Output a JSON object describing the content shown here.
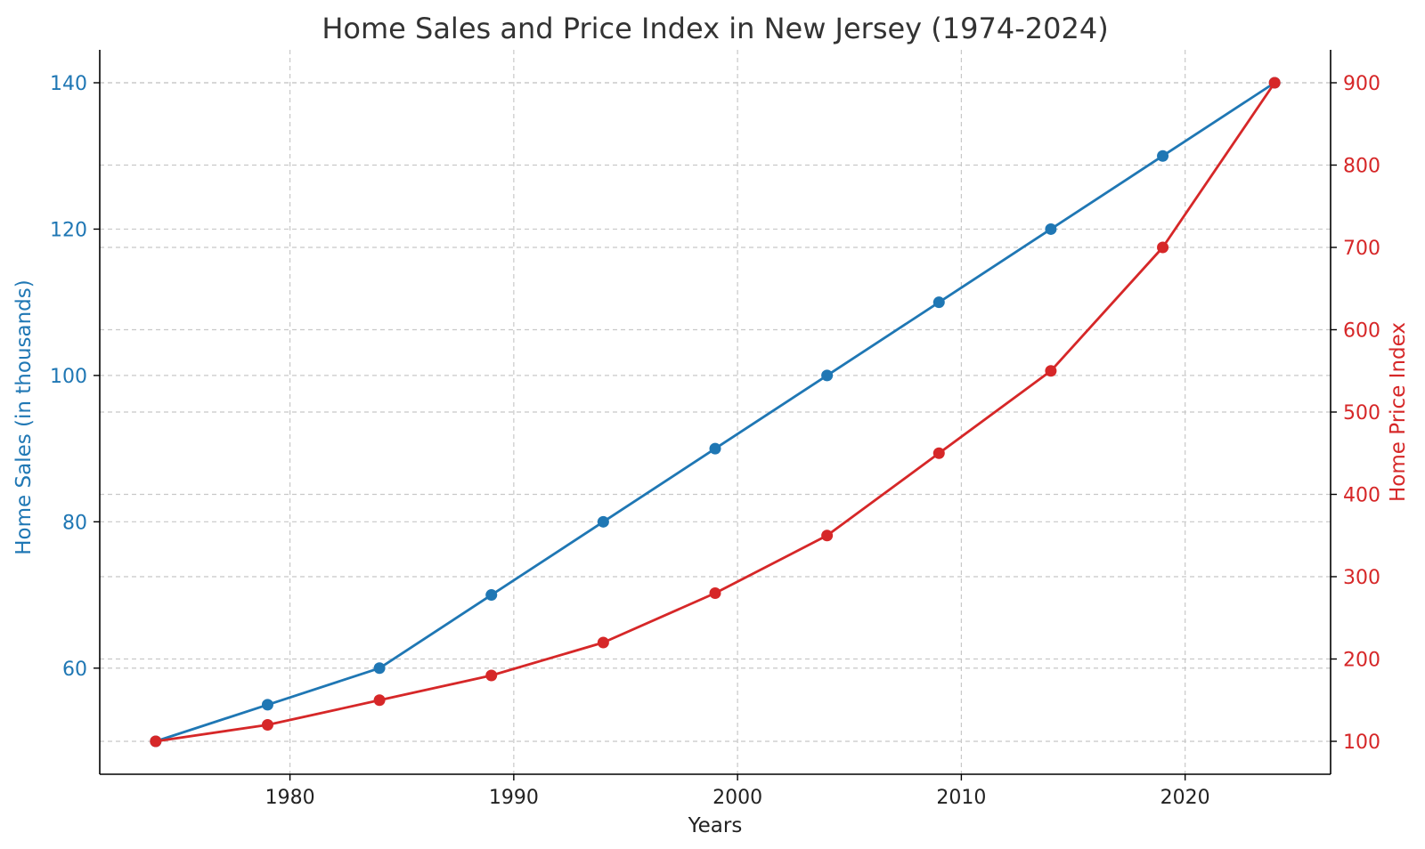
{
  "chart_data": {
    "type": "line",
    "title": "Home Sales and Price Index in New Jersey (1974-2024)",
    "xlabel": "Years",
    "x": [
      1974,
      1979,
      1984,
      1989,
      1994,
      1999,
      2004,
      2009,
      2014,
      2019,
      2024
    ],
    "xlim": [
      1971.5,
      2026.5
    ],
    "xticks": [
      1980,
      1990,
      2000,
      2010,
      2020
    ],
    "grid": true,
    "series": [
      {
        "axis": "left",
        "color": "#1f77b4",
        "values": [
          50,
          55,
          60,
          70,
          80,
          90,
          100,
          110,
          120,
          130,
          140
        ]
      },
      {
        "axis": "right",
        "color": "#d62728",
        "values": [
          100,
          120,
          150,
          180,
          220,
          280,
          350,
          450,
          550,
          700,
          900
        ]
      }
    ],
    "y_left": {
      "label": "Home Sales (in thousands)",
      "color": "#1f77b4",
      "lim": [
        45.5,
        144.5
      ],
      "ticks": [
        60,
        80,
        100,
        120,
        140
      ]
    },
    "y_right": {
      "label": "Home Price Index",
      "color": "#d62728",
      "lim": [
        60,
        940
      ],
      "ticks": [
        100,
        200,
        300,
        400,
        500,
        600,
        700,
        800,
        900
      ]
    }
  }
}
